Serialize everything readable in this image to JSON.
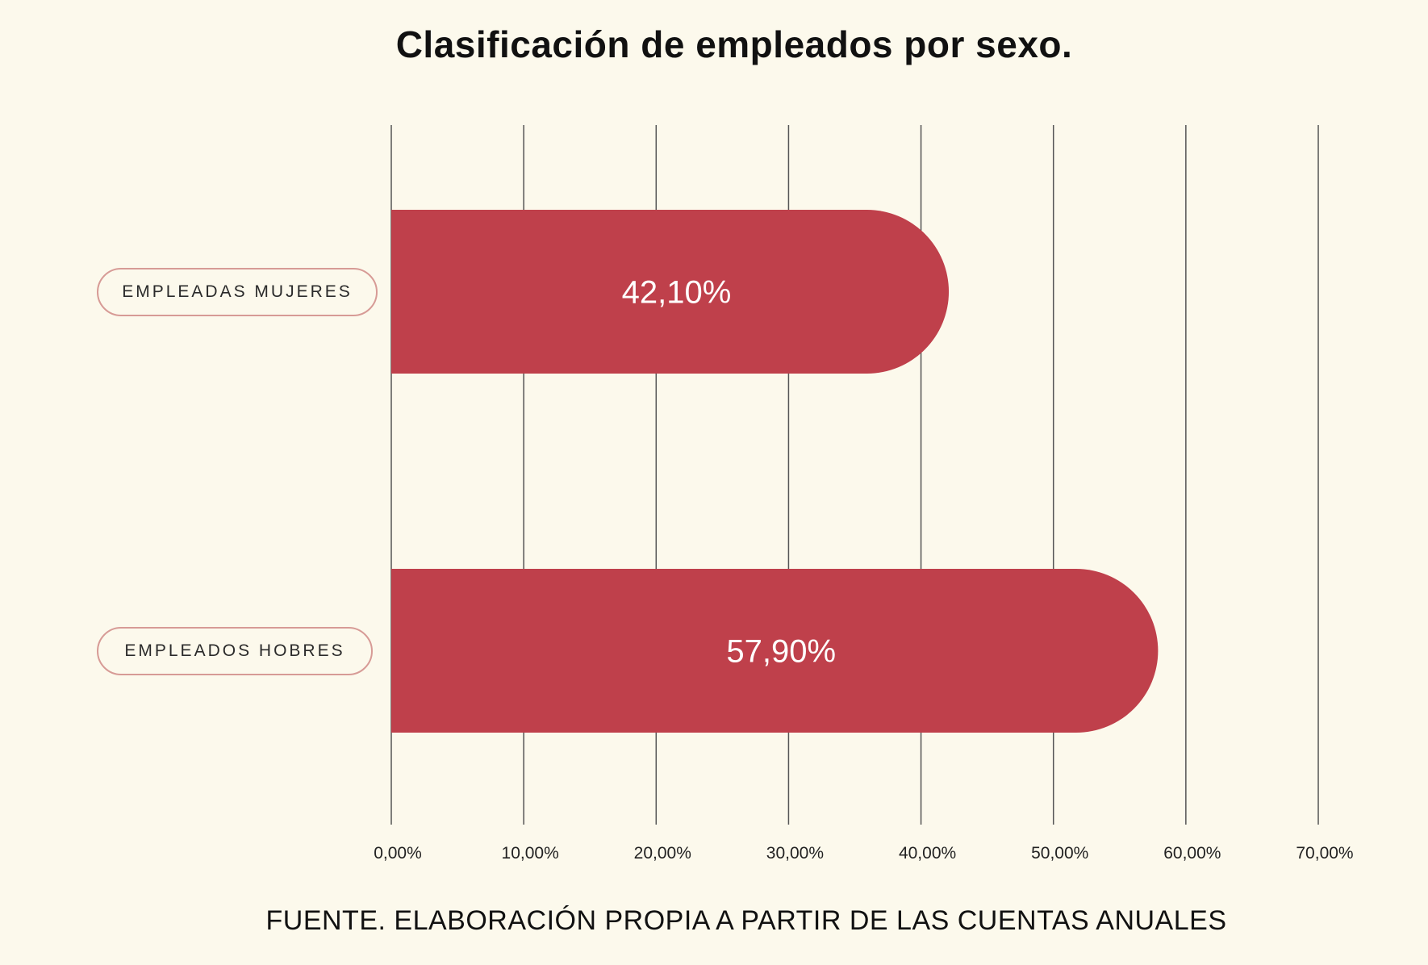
{
  "chart_data": {
    "type": "bar",
    "orientation": "horizontal",
    "title": "Clasificación de empleados por sexo.",
    "categories": [
      "EMPLEADAS MUJERES",
      "EMPLEADOS HOBRES"
    ],
    "values": [
      42.1,
      57.9
    ],
    "value_labels": [
      "42,10%",
      "57,90%"
    ],
    "xlim": [
      0,
      70
    ],
    "x_ticks": [
      0,
      10,
      20,
      30,
      40,
      50,
      60,
      70
    ],
    "x_tick_labels": [
      "0,00%",
      "10,00%",
      "20,00%",
      "30,00%",
      "40,00%",
      "50,00%",
      "60,00%",
      "70,00%"
    ],
    "xlabel": "",
    "ylabel": "",
    "grid": true,
    "legend": "none",
    "source": "FUENTE. ELABORACIÓN PROPIA A PARTIR DE LAS CUENTAS ANUALES"
  },
  "colors": {
    "background": "#fcf9ec",
    "bar": "#bf404b",
    "gridline": "#555555",
    "pill_border": "#d79b96",
    "text": "#111111"
  }
}
